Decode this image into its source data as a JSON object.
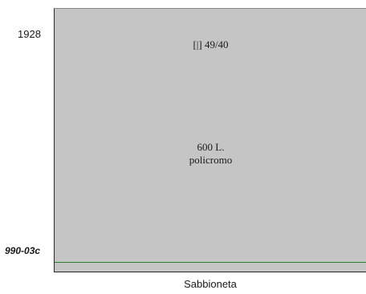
{
  "year_label": "1928",
  "catalog_code": "990-03c",
  "panel": {
    "top_text": "[|] 49/40",
    "value_text": "600 L.",
    "color_text": "policromo",
    "colors": {
      "background": "#c5c5c5",
      "baseline": "#2e7d32"
    }
  },
  "place_label": "Sabbioneta"
}
